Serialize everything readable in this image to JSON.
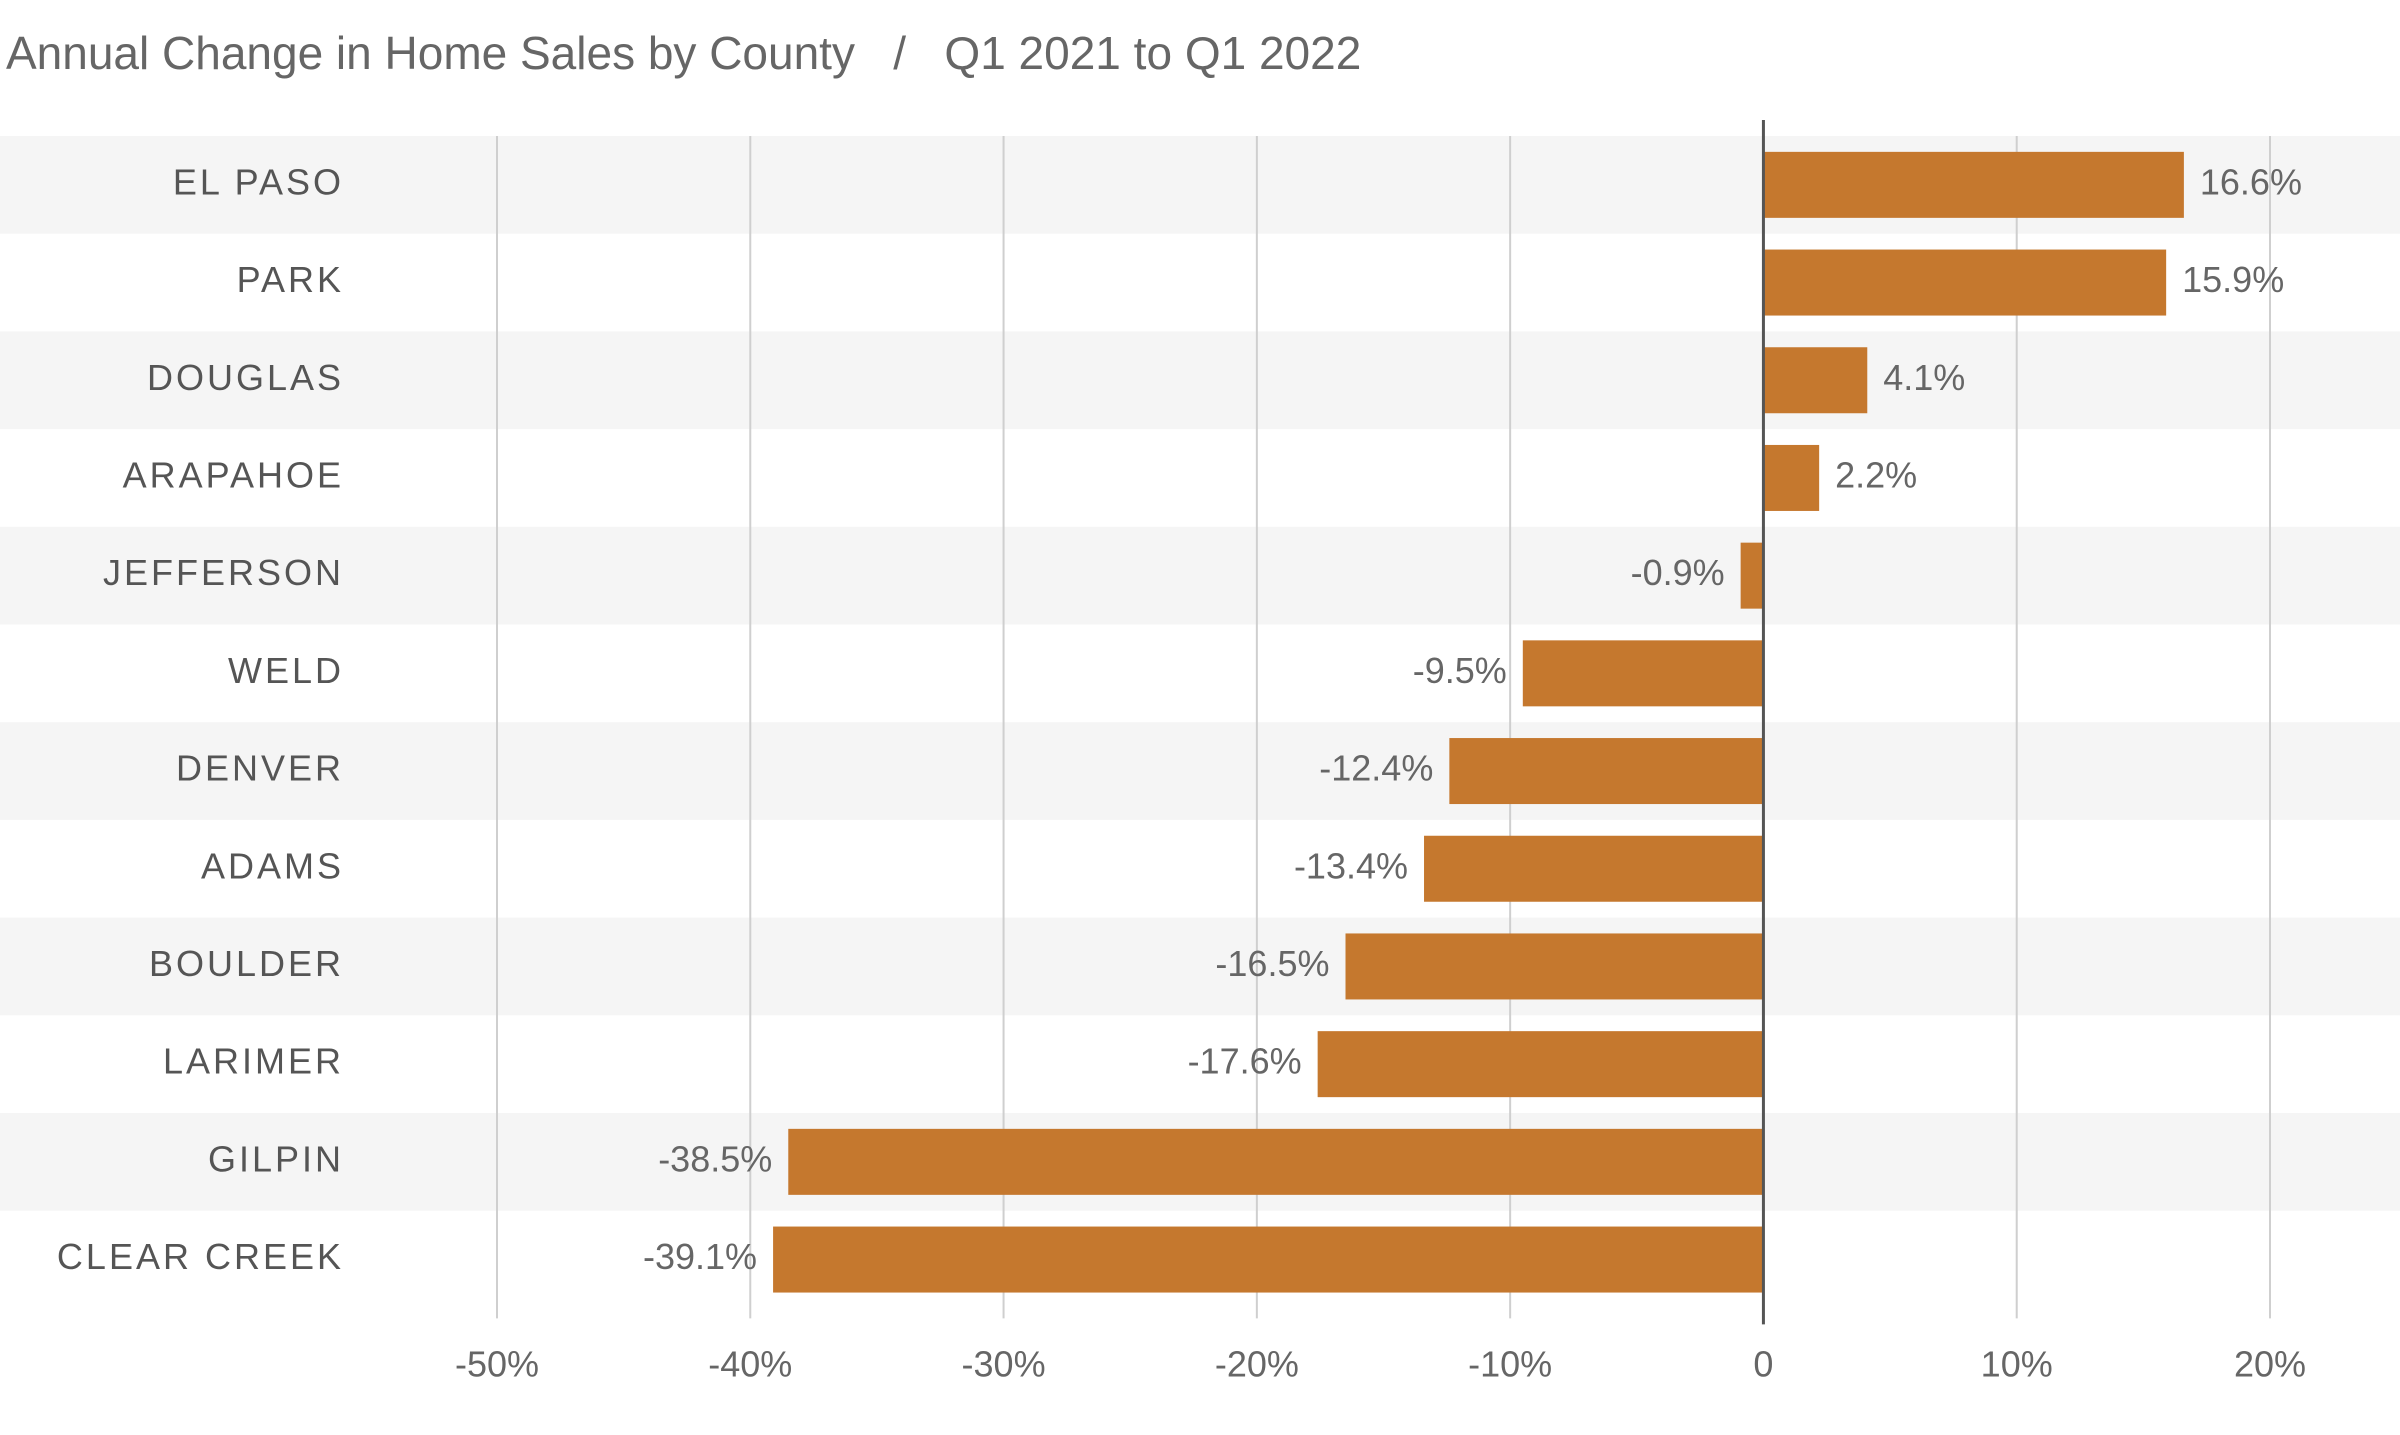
{
  "chart_data": {
    "type": "bar",
    "orientation": "horizontal",
    "title": "Annual Change in Home Sales by County   /   Q1 2021 to Q1 2022",
    "categories": [
      "EL PASO",
      "PARK",
      "DOUGLAS",
      "ARAPAHOE",
      "JEFFERSON",
      "WELD",
      "DENVER",
      "ADAMS",
      "BOULDER",
      "LARIMER",
      "GILPIN",
      "CLEAR CREEK"
    ],
    "values": [
      16.6,
      15.9,
      4.1,
      2.2,
      -0.9,
      -9.5,
      -12.4,
      -13.4,
      -16.5,
      -17.6,
      -38.5,
      -39.1
    ],
    "value_labels": [
      "16.6%",
      "15.9%",
      "4.1%",
      "2.2%",
      "-0.9%",
      "-9.5%",
      "-12.4%",
      "-13.4%",
      "-16.5%",
      "-17.6%",
      "-38.5%",
      "-39.1%"
    ],
    "color": "#c5782e",
    "xlim": [
      -50,
      20
    ],
    "xticks": [
      {
        "value": -50,
        "label": "-50%"
      },
      {
        "value": -40,
        "label": "-40%"
      },
      {
        "value": -30,
        "label": "-30%"
      },
      {
        "value": -20,
        "label": "-20%"
      },
      {
        "value": -10,
        "label": "-10%"
      },
      0,
      {
        "value": 10,
        "label": "10%"
      },
      {
        "value": 20,
        "label": "20%"
      }
    ],
    "grid": true
  }
}
